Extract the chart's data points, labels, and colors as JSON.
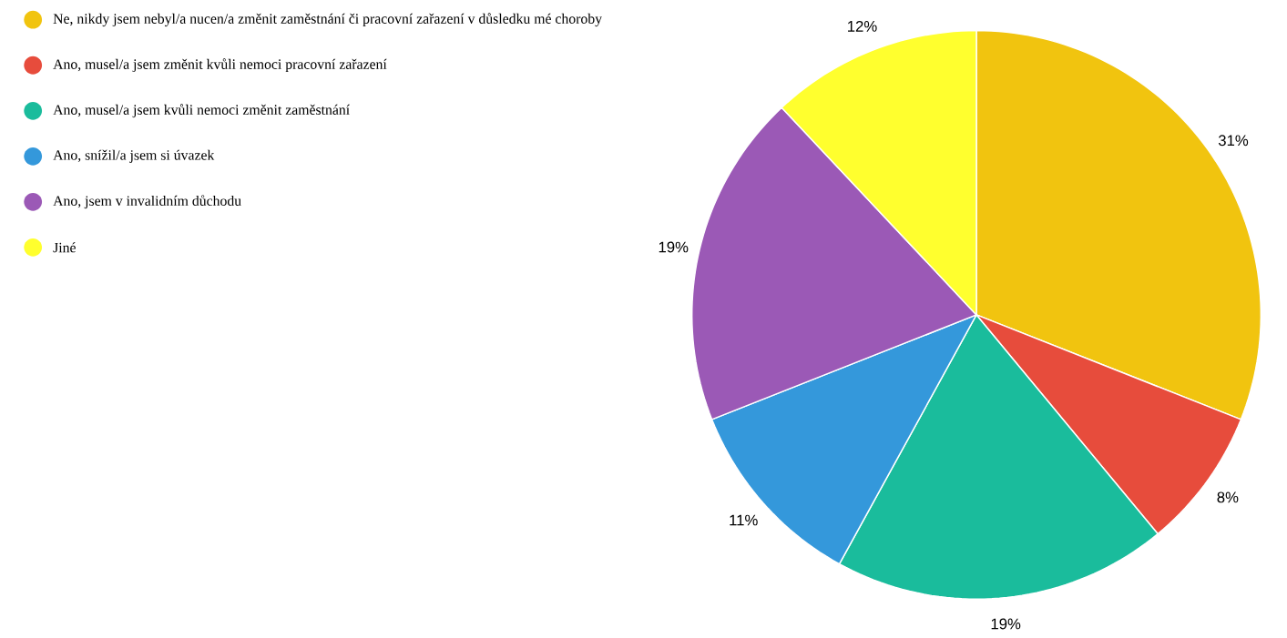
{
  "chart_data": {
    "type": "pie",
    "legend": "top left",
    "categories": [
      "Ne, nikdy jsem nebyl/a nucen/a změnit zaměstnání či pracovní zařazení v důsledku mé choroby",
      "Ano, musel/a jsem změnit kvůli nemoci pracovní zařazení",
      "Ano, musel/a jsem kvůli nemoci změnit zaměstnání",
      "Ano, snížil/a jsem si úvazek",
      "Ano, jsem v invalidním důchodu",
      "Jiné"
    ],
    "values": [
      31,
      8,
      19,
      11,
      19,
      12
    ],
    "value_labels": [
      "31%",
      "8%",
      "19%",
      "11%",
      "19%",
      "12%"
    ],
    "colors": [
      "#f1c40f",
      "#e74c3c",
      "#1abc9c",
      "#3498db",
      "#9b59b6",
      "#ffff2e"
    ]
  }
}
